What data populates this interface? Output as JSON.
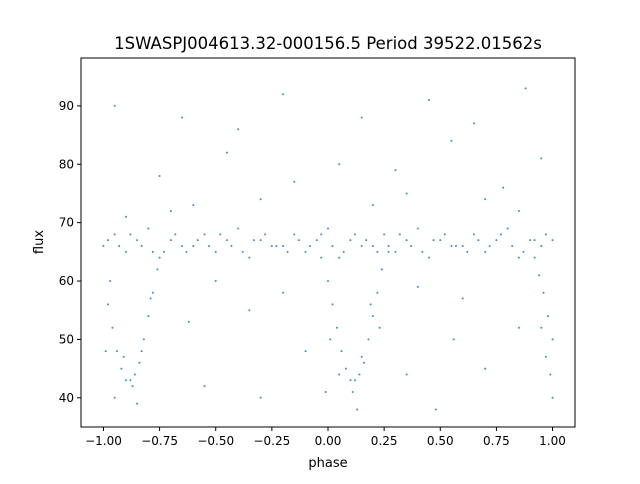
{
  "chart_data": {
    "type": "scatter",
    "title": "1SWASPJ004613.32-000156.5 Period 39522.01562s",
    "xlabel": "phase",
    "ylabel": "flux",
    "xlim": [
      -1.1,
      1.1
    ],
    "ylim": [
      35,
      98.2
    ],
    "xticks": [
      -1.0,
      -0.75,
      -0.5,
      -0.25,
      0.0,
      0.25,
      0.5,
      0.75,
      1.0
    ],
    "xtick_labels": [
      "−1.00",
      "−0.75",
      "−0.50",
      "−0.25",
      "0.00",
      "0.25",
      "0.50",
      "0.75",
      "1.00"
    ],
    "yticks": [
      40,
      50,
      60,
      70,
      80,
      90
    ],
    "ytick_labels": [
      "40",
      "50",
      "60",
      "70",
      "80",
      "90"
    ],
    "grid": false,
    "marker_color": "#1f77b4",
    "points": [
      [
        -1.0,
        66
      ],
      [
        -0.95,
        68
      ],
      [
        -0.9,
        65
      ],
      [
        -0.85,
        67
      ],
      [
        -0.8,
        69
      ],
      [
        -0.75,
        64
      ],
      [
        -0.7,
        67
      ],
      [
        -0.65,
        66
      ],
      [
        -0.6,
        66
      ],
      [
        -0.55,
        68
      ],
      [
        -0.5,
        65
      ],
      [
        -0.45,
        67
      ],
      [
        -0.4,
        69
      ],
      [
        -0.35,
        64
      ],
      [
        -0.3,
        67
      ],
      [
        -0.25,
        66
      ],
      [
        -0.2,
        66
      ],
      [
        -0.15,
        68
      ],
      [
        -0.1,
        65
      ],
      [
        -0.05,
        67
      ],
      [
        0.0,
        69
      ],
      [
        0.05,
        64
      ],
      [
        0.1,
        67
      ],
      [
        0.15,
        66
      ],
      [
        0.2,
        66
      ],
      [
        0.25,
        68
      ],
      [
        0.3,
        65
      ],
      [
        0.35,
        67
      ],
      [
        0.4,
        69
      ],
      [
        0.45,
        64
      ],
      [
        0.5,
        67
      ],
      [
        0.55,
        66
      ],
      [
        0.6,
        66
      ],
      [
        0.65,
        68
      ],
      [
        0.7,
        65
      ],
      [
        0.75,
        67
      ],
      [
        0.8,
        69
      ],
      [
        0.85,
        64
      ],
      [
        0.9,
        67
      ],
      [
        0.95,
        66
      ],
      [
        1.0,
        67
      ],
      [
        -0.98,
        67
      ],
      [
        -0.93,
        66
      ],
      [
        -0.88,
        68
      ],
      [
        -0.83,
        66
      ],
      [
        -0.78,
        65
      ],
      [
        -0.68,
        68
      ],
      [
        -0.63,
        65
      ],
      [
        -0.58,
        67
      ],
      [
        -0.53,
        66
      ],
      [
        -0.48,
        68
      ],
      [
        -0.43,
        66
      ],
      [
        -0.38,
        65
      ],
      [
        -0.33,
        67
      ],
      [
        -0.28,
        68
      ],
      [
        -0.23,
        66
      ],
      [
        -0.18,
        65
      ],
      [
        -0.13,
        67
      ],
      [
        -0.08,
        66
      ],
      [
        -0.03,
        68
      ],
      [
        0.02,
        66
      ],
      [
        0.07,
        65
      ],
      [
        0.12,
        68
      ],
      [
        0.17,
        67
      ],
      [
        0.22,
        65
      ],
      [
        0.27,
        66
      ],
      [
        0.32,
        68
      ],
      [
        0.37,
        66
      ],
      [
        0.42,
        65
      ],
      [
        0.47,
        67
      ],
      [
        0.52,
        68
      ],
      [
        0.57,
        66
      ],
      [
        0.62,
        65
      ],
      [
        0.67,
        67
      ],
      [
        0.72,
        66
      ],
      [
        0.77,
        68
      ],
      [
        0.82,
        66
      ],
      [
        0.87,
        65
      ],
      [
        0.92,
        67
      ],
      [
        0.97,
        68
      ],
      [
        -0.98,
        56
      ],
      [
        -0.96,
        52
      ],
      [
        -0.94,
        48
      ],
      [
        -0.92,
        45
      ],
      [
        -0.9,
        43
      ],
      [
        -0.88,
        43
      ],
      [
        -0.86,
        44
      ],
      [
        -0.84,
        46
      ],
      [
        -0.82,
        50
      ],
      [
        -0.8,
        54
      ],
      [
        -0.78,
        58
      ],
      [
        -0.76,
        62
      ],
      [
        -0.73,
        65
      ],
      [
        -0.97,
        60
      ],
      [
        -0.91,
        47
      ],
      [
        -0.87,
        42
      ],
      [
        -0.83,
        48
      ],
      [
        -0.79,
        57
      ],
      [
        -0.99,
        48
      ],
      [
        -0.95,
        40
      ],
      [
        -0.85,
        39
      ],
      [
        -0.03,
        64
      ],
      [
        0.0,
        60
      ],
      [
        0.02,
        56
      ],
      [
        0.04,
        52
      ],
      [
        0.06,
        48
      ],
      [
        0.08,
        45
      ],
      [
        0.1,
        43
      ],
      [
        0.12,
        43
      ],
      [
        0.14,
        44
      ],
      [
        0.16,
        46
      ],
      [
        0.18,
        50
      ],
      [
        0.2,
        54
      ],
      [
        0.22,
        58
      ],
      [
        0.24,
        62
      ],
      [
        0.27,
        65
      ],
      [
        0.01,
        50
      ],
      [
        0.05,
        44
      ],
      [
        0.11,
        41
      ],
      [
        0.15,
        47
      ],
      [
        0.19,
        56
      ],
      [
        0.23,
        52
      ],
      [
        -0.01,
        41
      ],
      [
        0.13,
        38
      ],
      [
        0.92,
        64
      ],
      [
        0.94,
        61
      ],
      [
        0.96,
        58
      ],
      [
        0.98,
        54
      ],
      [
        1.0,
        50
      ],
      [
        0.97,
        47
      ],
      [
        0.99,
        44
      ],
      [
        1.0,
        40
      ],
      [
        0.95,
        52
      ],
      [
        -0.7,
        72
      ],
      [
        -0.6,
        73
      ],
      [
        -0.3,
        74
      ],
      [
        0.2,
        73
      ],
      [
        0.35,
        75
      ],
      [
        0.7,
        74
      ],
      [
        0.85,
        72
      ],
      [
        -0.9,
        71
      ],
      [
        -0.75,
        78
      ],
      [
        -0.45,
        82
      ],
      [
        -0.15,
        77
      ],
      [
        0.05,
        80
      ],
      [
        0.3,
        79
      ],
      [
        0.55,
        84
      ],
      [
        0.78,
        76
      ],
      [
        0.95,
        81
      ],
      [
        -0.95,
        90
      ],
      [
        -0.4,
        86
      ],
      [
        -0.2,
        92
      ],
      [
        0.15,
        88
      ],
      [
        0.45,
        91
      ],
      [
        0.65,
        87
      ],
      [
        0.88,
        93
      ],
      [
        -0.65,
        88
      ],
      [
        -0.5,
        60
      ],
      [
        -0.2,
        58
      ],
      [
        0.4,
        59
      ],
      [
        0.6,
        57
      ],
      [
        -0.35,
        55
      ],
      [
        0.48,
        38
      ],
      [
        -0.55,
        42
      ],
      [
        0.7,
        45
      ],
      [
        -0.3,
        40
      ],
      [
        0.35,
        44
      ],
      [
        -0.1,
        48
      ],
      [
        0.85,
        52
      ],
      [
        -0.62,
        53
      ],
      [
        0.56,
        50
      ]
    ]
  }
}
